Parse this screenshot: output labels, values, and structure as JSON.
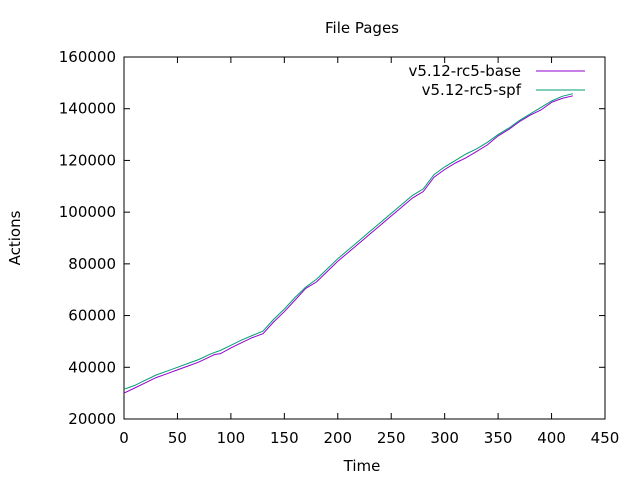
{
  "chart_data": {
    "type": "line",
    "title": "File Pages",
    "xlabel": "Time",
    "ylabel": "Actions",
    "xlim": [
      0,
      450
    ],
    "ylim": [
      20000,
      160000
    ],
    "xticks": [
      0,
      50,
      100,
      150,
      200,
      250,
      300,
      350,
      400,
      450
    ],
    "yticks": [
      20000,
      40000,
      60000,
      80000,
      100000,
      120000,
      140000,
      160000
    ],
    "grid": false,
    "legend_position": "top-right",
    "series": [
      {
        "name": "v5.12-rc5-base",
        "color": "#9400d3",
        "x": [
          0,
          10,
          20,
          30,
          40,
          50,
          60,
          70,
          80,
          85,
          90,
          100,
          110,
          120,
          130,
          140,
          150,
          160,
          170,
          180,
          190,
          200,
          210,
          220,
          230,
          240,
          250,
          260,
          270,
          280,
          290,
          300,
          310,
          320,
          330,
          340,
          350,
          360,
          370,
          380,
          390,
          400,
          410,
          420
        ],
        "y": [
          30000,
          32000,
          34000,
          36000,
          37500,
          39000,
          40500,
          42000,
          44000,
          45000,
          45200,
          47500,
          49500,
          51500,
          53000,
          57500,
          61500,
          66000,
          70500,
          73000,
          77000,
          81000,
          84500,
          88000,
          91500,
          95000,
          98500,
          102000,
          105500,
          108000,
          113500,
          116500,
          119000,
          121000,
          123500,
          126000,
          129500,
          132000,
          135000,
          137500,
          139500,
          142500,
          144000,
          145000
        ]
      },
      {
        "name": "v5.12-rc5-spf",
        "color": "#009e73",
        "x": [
          0,
          10,
          20,
          30,
          40,
          50,
          60,
          70,
          80,
          85,
          90,
          100,
          110,
          120,
          130,
          140,
          150,
          160,
          170,
          180,
          190,
          200,
          210,
          220,
          230,
          240,
          250,
          260,
          270,
          280,
          290,
          300,
          310,
          320,
          330,
          340,
          350,
          360,
          370,
          380,
          390,
          400,
          410,
          420
        ],
        "y": [
          31500,
          33000,
          35000,
          37000,
          38500,
          40000,
          41500,
          43000,
          45000,
          45800,
          46500,
          48500,
          50500,
          52300,
          54000,
          58500,
          62500,
          67000,
          71000,
          74000,
          78000,
          82000,
          85500,
          89000,
          92500,
          96000,
          99500,
          103000,
          106500,
          109000,
          114500,
          117500,
          120000,
          122500,
          124500,
          127000,
          130000,
          132500,
          135500,
          138000,
          140500,
          143000,
          144800,
          145800
        ]
      }
    ]
  }
}
